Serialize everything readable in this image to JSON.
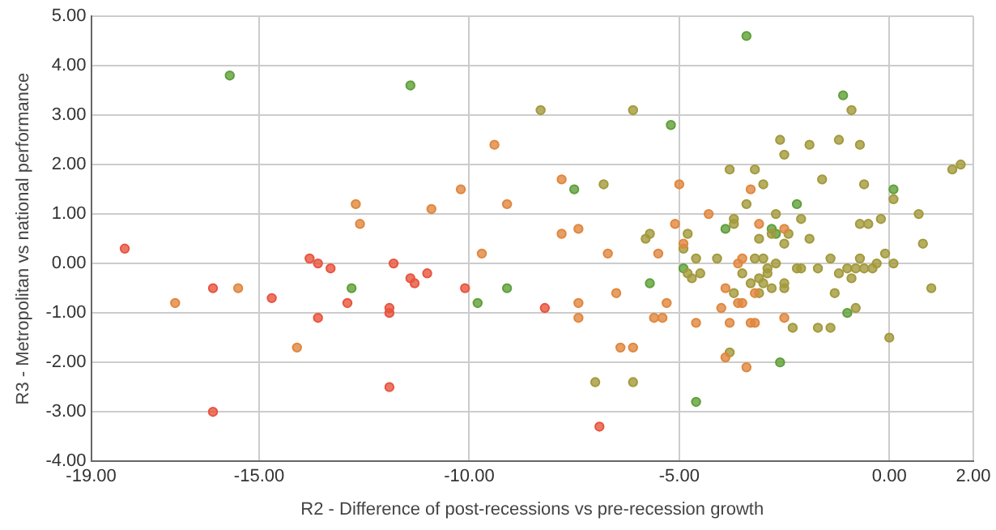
{
  "chart_data": {
    "type": "scatter",
    "xlabel": "R2 - Difference of post-recessions vs pre-recession growth",
    "ylabel": "R3 - Metropolitan vs national performance",
    "xlim": [
      -19,
      2
    ],
    "ylim": [
      -4,
      5
    ],
    "xticks": [
      {
        "value": -19,
        "label": "-19.00"
      },
      {
        "value": -15,
        "label": "-15.00"
      },
      {
        "value": -10,
        "label": "-10.00"
      },
      {
        "value": -5,
        "label": "-5.00"
      },
      {
        "value": 0,
        "label": "0.00"
      },
      {
        "value": 2,
        "label": "2.00"
      }
    ],
    "yticks": [
      {
        "value": -4,
        "label": "-4.00"
      },
      {
        "value": -3,
        "label": "-3.00"
      },
      {
        "value": -2,
        "label": "-2.00"
      },
      {
        "value": -1,
        "label": "-1.00"
      },
      {
        "value": 0,
        "label": "0.00"
      },
      {
        "value": 1,
        "label": "1.00"
      },
      {
        "value": 2,
        "label": "2.00"
      },
      {
        "value": 3,
        "label": "3.00"
      },
      {
        "value": 4,
        "label": "4.00"
      },
      {
        "value": 5,
        "label": "5.00"
      }
    ],
    "grid": true,
    "legend": false,
    "marker": "circle",
    "series": [
      {
        "color": "#e8553f",
        "x": [
          -18.2,
          -16.1,
          -16.1,
          -14.7,
          -13.8,
          -13.6,
          -13.6,
          -13.3,
          -12.9,
          -11.9,
          -11.9,
          -11.9,
          -11.8,
          -11.4,
          -11.3,
          -11.0,
          -10.1,
          -6.9,
          -8.2
        ],
        "values": [
          0.3,
          -0.5,
          -3.0,
          -0.7,
          0.1,
          0.0,
          -1.1,
          -0.1,
          -0.8,
          -0.9,
          -1.0,
          -2.5,
          0.0,
          -0.3,
          -0.4,
          -0.2,
          -0.5,
          -3.3,
          -0.9
        ]
      },
      {
        "color": "#e0873e",
        "x": [
          -17.0,
          -15.5,
          -14.1,
          -12.7,
          -12.6,
          -10.9,
          -10.2,
          -9.7,
          -9.4,
          -9.1,
          -7.8,
          -7.8,
          -7.4,
          -7.4,
          -7.4,
          -6.7,
          -6.5,
          -6.4,
          -6.1,
          -5.6,
          -5.4,
          -5.5,
          -5.3,
          -5.0,
          -5.1,
          -4.3,
          -4.9,
          -4.6,
          -4.0,
          -3.3,
          -3.1,
          -3.9,
          -3.9,
          -3.8,
          -3.6,
          -3.5,
          -3.4,
          -3.3,
          -3.2,
          -3.2,
          -2.5,
          -2.5,
          -3.6,
          -3.5
        ],
        "values": [
          -0.8,
          -0.5,
          -1.7,
          1.2,
          0.8,
          1.1,
          1.5,
          0.2,
          2.4,
          1.2,
          1.7,
          0.6,
          0.7,
          -0.8,
          -1.1,
          0.2,
          -0.6,
          -1.7,
          -1.7,
          -1.1,
          -1.1,
          0.2,
          -0.8,
          1.6,
          0.8,
          1.0,
          0.4,
          -1.2,
          -0.9,
          1.5,
          0.8,
          -0.5,
          -1.9,
          -1.2,
          -0.8,
          -0.8,
          -2.1,
          -1.2,
          -1.2,
          -0.6,
          0.7,
          -1.1,
          0.0,
          0.1
        ]
      },
      {
        "color": "#a39a3c",
        "x": [
          -8.3,
          -6.8,
          -6.1,
          -5.8,
          -5.7,
          -4.8,
          -4.9,
          -3.8,
          -3.7,
          -3.7,
          -3.2,
          -3.4,
          -3.1,
          -3.0,
          -2.8,
          -2.7,
          -2.6,
          -2.5,
          -2.5,
          -2.4,
          -2.1,
          -1.9,
          -1.9,
          -1.6,
          -1.2,
          -0.9,
          -0.7,
          -0.7,
          -0.5,
          -0.6,
          -0.2,
          0.1,
          0.7,
          0.8,
          1.5,
          1.7,
          -7.0,
          -6.1,
          -4.8,
          -4.7,
          -4.6,
          -4.5,
          -4.1,
          -3.8,
          -3.7,
          -3.5,
          -3.3,
          -3.2,
          -3.1,
          -3.1,
          -3.0,
          -3.0,
          -2.9,
          -2.9,
          -2.8,
          -2.7,
          -2.5,
          -2.5,
          -2.3,
          -2.2,
          -2.1,
          -1.7,
          -1.7,
          -1.4,
          -1.4,
          -1.3,
          -1.2,
          -1.0,
          -0.8,
          -0.6,
          -0.4,
          -0.9,
          -0.8,
          -0.7,
          -0.3,
          -0.1,
          0.0,
          0.1,
          1.0
        ],
        "values": [
          3.1,
          1.6,
          3.1,
          0.5,
          0.6,
          0.6,
          0.3,
          1.9,
          0.9,
          0.8,
          1.9,
          1.2,
          0.5,
          1.6,
          0.6,
          1.0,
          2.5,
          2.2,
          0.4,
          0.6,
          0.9,
          2.4,
          0.5,
          1.7,
          2.5,
          3.1,
          2.4,
          0.8,
          0.8,
          1.6,
          0.9,
          1.3,
          1.0,
          0.4,
          1.9,
          2.0,
          -2.4,
          -2.4,
          -0.2,
          -0.3,
          0.1,
          -0.2,
          0.1,
          -1.8,
          -0.6,
          -0.2,
          -0.4,
          0.1,
          -0.6,
          -0.3,
          -0.4,
          0.1,
          -0.1,
          -0.2,
          -0.5,
          0.0,
          -0.4,
          -0.5,
          -1.3,
          -0.1,
          -0.1,
          -0.1,
          -1.3,
          -1.3,
          0.1,
          -0.6,
          -0.2,
          -0.1,
          -0.1,
          -0.1,
          -0.1,
          -0.3,
          -0.9,
          0.1,
          0.0,
          0.2,
          -1.5,
          0.0,
          -0.5
        ]
      },
      {
        "color": "#5fa03a",
        "x": [
          -15.7,
          -12.8,
          -11.4,
          -9.8,
          -7.5,
          -5.2,
          -3.9,
          -3.4,
          -2.2,
          -1.1,
          0.1,
          -4.9,
          -4.6,
          -2.6,
          -1.0,
          -5.7,
          -9.1,
          -2.8,
          -2.7
        ],
        "values": [
          3.8,
          -0.5,
          3.6,
          -0.8,
          1.5,
          2.8,
          0.7,
          4.6,
          1.2,
          3.4,
          1.5,
          -0.1,
          -2.8,
          -2.0,
          -1.0,
          -0.4,
          -0.5,
          0.7,
          0.6
        ]
      }
    ]
  }
}
